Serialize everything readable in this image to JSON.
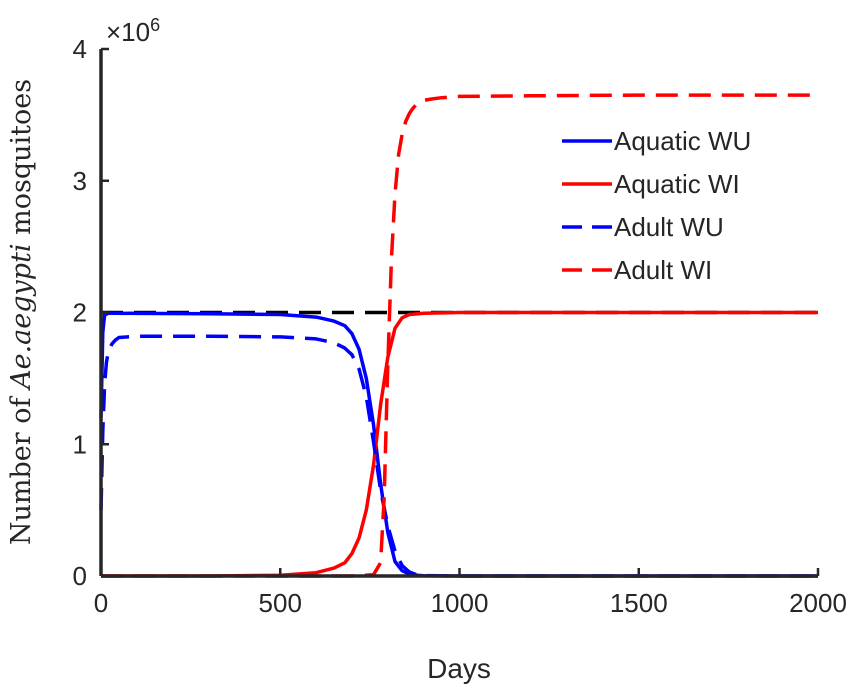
{
  "chart_data": {
    "type": "line",
    "xlabel": "Days",
    "ylabel_prefix": "Number of ",
    "ylabel_italic": "Ae.aegypti",
    "ylabel_suffix": " mosquitoes",
    "y_exponent_label": "×10",
    "y_exponent_power": "6",
    "xlim": [
      0,
      2000
    ],
    "ylim": [
      0,
      4000000
    ],
    "xticks": [
      0,
      500,
      1000,
      1500,
      2000
    ],
    "xtick_labels": [
      "0",
      "500",
      "1000",
      "1500",
      "2000"
    ],
    "yticks": [
      0,
      1000000,
      2000000,
      3000000,
      4000000
    ],
    "ytick_labels": [
      "0",
      "1",
      "2",
      "3",
      "4"
    ],
    "grid": false,
    "legend_position": "top-right",
    "series": [
      {
        "name": "Aquatic WU",
        "color": "#0000ff",
        "dash": "solid",
        "x": [
          0,
          5,
          10,
          20,
          40,
          100,
          300,
          500,
          600,
          650,
          680,
          700,
          720,
          740,
          760,
          780,
          800,
          820,
          840,
          860,
          880,
          900,
          1000,
          1500,
          2000
        ],
        "y": [
          1200000,
          1850000,
          1980000,
          1995000,
          1995000,
          1993000,
          1990000,
          1985000,
          1965000,
          1935000,
          1900000,
          1840000,
          1720000,
          1500000,
          1150000,
          700000,
          330000,
          110000,
          40000,
          15000,
          5000,
          2000,
          0,
          0,
          0
        ]
      },
      {
        "name": "Aquatic WI",
        "color": "#ff0000",
        "dash": "solid",
        "x": [
          0,
          300,
          500,
          600,
          650,
          680,
          700,
          720,
          740,
          760,
          780,
          800,
          820,
          840,
          860,
          900,
          1000,
          1500,
          2000
        ],
        "y": [
          0,
          0,
          5000,
          25000,
          60000,
          100000,
          170000,
          290000,
          500000,
          840000,
          1300000,
          1660000,
          1880000,
          1960000,
          1985000,
          1995000,
          2000000,
          2000000,
          2000000
        ]
      },
      {
        "name": "Adult WU",
        "color": "#0000ff",
        "dash": "dashed",
        "x": [
          0,
          5,
          10,
          15,
          20,
          30,
          40,
          50,
          100,
          300,
          500,
          600,
          650,
          680,
          700,
          720,
          740,
          760,
          780,
          800,
          820,
          840,
          860,
          880,
          900,
          1000,
          1500,
          2000
        ],
        "y": [
          500000,
          1100000,
          1450000,
          1620000,
          1700000,
          1760000,
          1790000,
          1810000,
          1820000,
          1820000,
          1815000,
          1800000,
          1770000,
          1730000,
          1680000,
          1570000,
          1360000,
          1020000,
          650000,
          380000,
          190000,
          80000,
          30000,
          10000,
          3000,
          0,
          0,
          0
        ]
      },
      {
        "name": "Adult WI",
        "color": "#ff0000",
        "dash": "dashed",
        "x": [
          0,
          700,
          760,
          780,
          790,
          800,
          810,
          820,
          830,
          840,
          850,
          860,
          870,
          880,
          900,
          920,
          950,
          1000,
          1200,
          1500,
          2000
        ],
        "y": [
          0,
          0,
          10000,
          100000,
          600000,
          1600000,
          2400000,
          2900000,
          3200000,
          3350000,
          3450000,
          3510000,
          3550000,
          3580000,
          3610000,
          3620000,
          3630000,
          3640000,
          3645000,
          3650000,
          3650000
        ]
      },
      {
        "color": "#000000",
        "dash": "dashed",
        "x": [
          0,
          2000
        ],
        "y": [
          2000000,
          2000000
        ]
      }
    ]
  }
}
